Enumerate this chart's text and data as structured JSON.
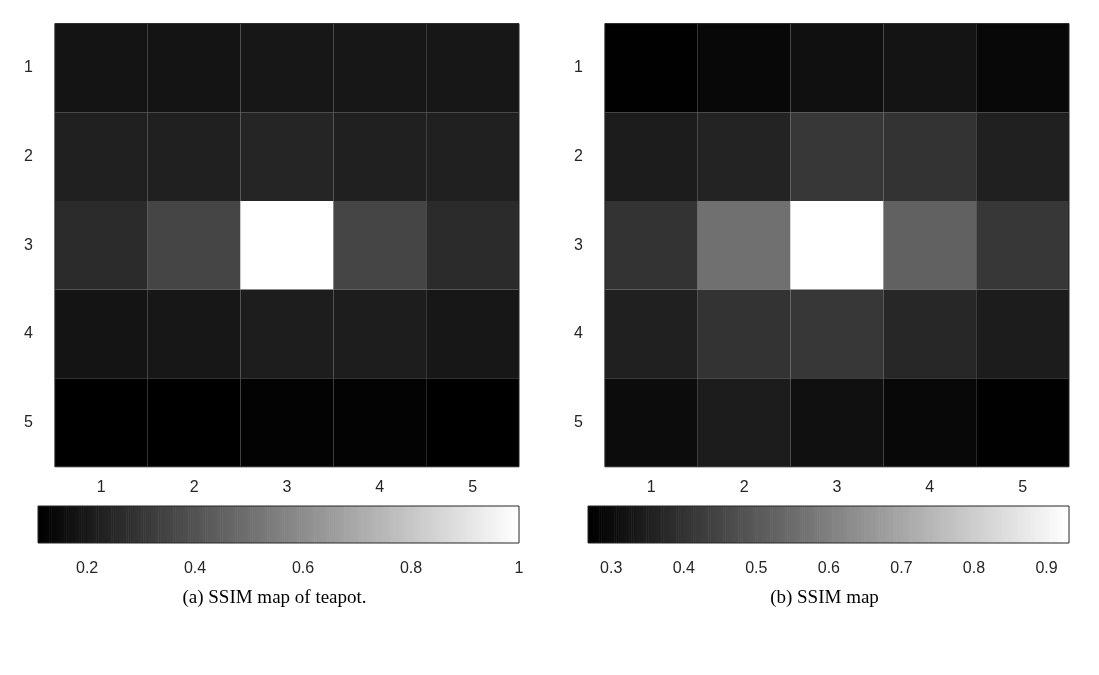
{
  "chart_data": [
    {
      "type": "heatmap",
      "title": "(a) SSIM map of teapot.",
      "categories": [
        "1",
        "2",
        "3",
        "4",
        "5"
      ],
      "y_categories": [
        "1",
        "2",
        "3",
        "4",
        "5"
      ],
      "cells": [
        [
          0.18,
          0.18,
          0.19,
          0.19,
          0.19
        ],
        [
          0.22,
          0.22,
          0.24,
          0.22,
          0.22
        ],
        [
          0.26,
          0.35,
          1.0,
          0.35,
          0.26
        ],
        [
          0.18,
          0.19,
          0.21,
          0.21,
          0.19
        ],
        [
          0.11,
          0.11,
          0.12,
          0.12,
          0.11
        ]
      ],
      "clim": [
        0.109,
        1
      ],
      "cticks": [
        0.2,
        0.4,
        0.6,
        0.8,
        1
      ]
    },
    {
      "type": "heatmap",
      "title": "(b) SSIM map",
      "categories": [
        "1",
        "2",
        "3",
        "4",
        "5"
      ],
      "y_categories": [
        "1",
        "2",
        "3",
        "4",
        "5"
      ],
      "cells": [
        [
          0.27,
          0.29,
          0.31,
          0.32,
          0.29
        ],
        [
          0.34,
          0.36,
          0.41,
          0.4,
          0.35
        ],
        [
          0.4,
          0.56,
          0.93,
          0.52,
          0.41
        ],
        [
          0.35,
          0.4,
          0.41,
          0.37,
          0.34
        ],
        [
          0.3,
          0.34,
          0.31,
          0.29,
          0.27
        ]
      ],
      "clim": [
        0.268,
        0.931
      ],
      "cticks": [
        0.3,
        0.4,
        0.5,
        0.6,
        0.7,
        0.8,
        0.9
      ]
    }
  ]
}
